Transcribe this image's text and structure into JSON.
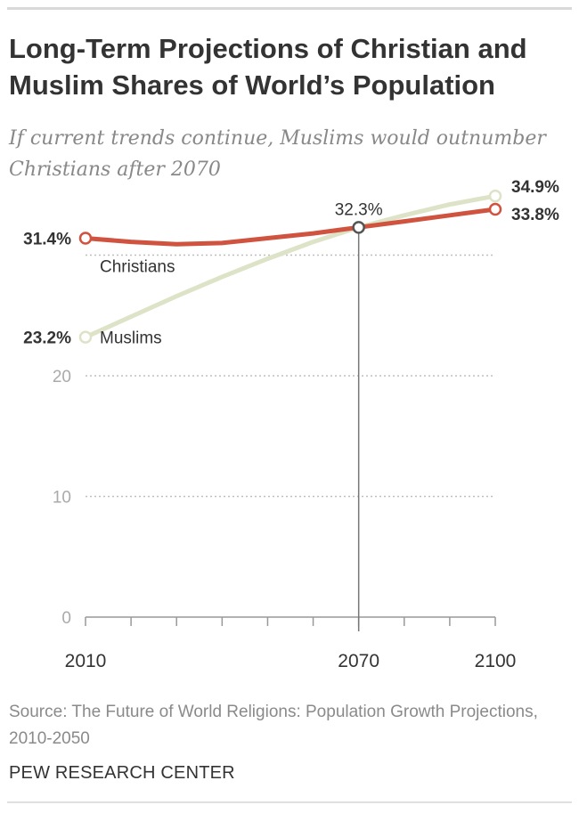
{
  "header": {
    "title": "Long-Term Projections of Christian and Muslim Shares of World’s Population",
    "subtitle": "If current trends continue, Muslims would outnumber Christians after 2070"
  },
  "footer": {
    "source": "Source: The Future of World Religions: Population Growth Projections, 2010-2050",
    "brand": "PEW RESEARCH CENTER"
  },
  "colors": {
    "christians": "#d0533f",
    "muslims": "#dde3c6",
    "grid": "#bfbfbf",
    "axis": "#999999",
    "marker": "#555555"
  },
  "chart_data": {
    "type": "line",
    "title": "Long-Term Projections of Christian and Muslim Shares of World’s Population",
    "xlabel": "",
    "ylabel": "",
    "xlim": [
      2010,
      2100
    ],
    "ylim": [
      0,
      35
    ],
    "x_ticks": [
      2010,
      2070,
      2100
    ],
    "y_ticks": [
      0,
      10,
      20
    ],
    "grid": true,
    "crossover_marker": {
      "x": 2070,
      "y": 32.3,
      "label": "32.3%"
    },
    "series": [
      {
        "name": "Christians",
        "x": [
          2010,
          2020,
          2030,
          2040,
          2050,
          2060,
          2070,
          2080,
          2090,
          2100
        ],
        "values": [
          31.4,
          31.1,
          30.9,
          31.0,
          31.4,
          31.8,
          32.3,
          32.8,
          33.3,
          33.8
        ],
        "start_label": "31.4%",
        "end_label": "33.8%"
      },
      {
        "name": "Muslims",
        "x": [
          2010,
          2020,
          2030,
          2040,
          2050,
          2060,
          2070,
          2080,
          2090,
          2100
        ],
        "values": [
          23.2,
          24.9,
          26.6,
          28.2,
          29.7,
          31.1,
          32.3,
          33.3,
          34.2,
          34.9
        ],
        "start_label": "23.2%",
        "end_label": "34.9%"
      }
    ]
  }
}
